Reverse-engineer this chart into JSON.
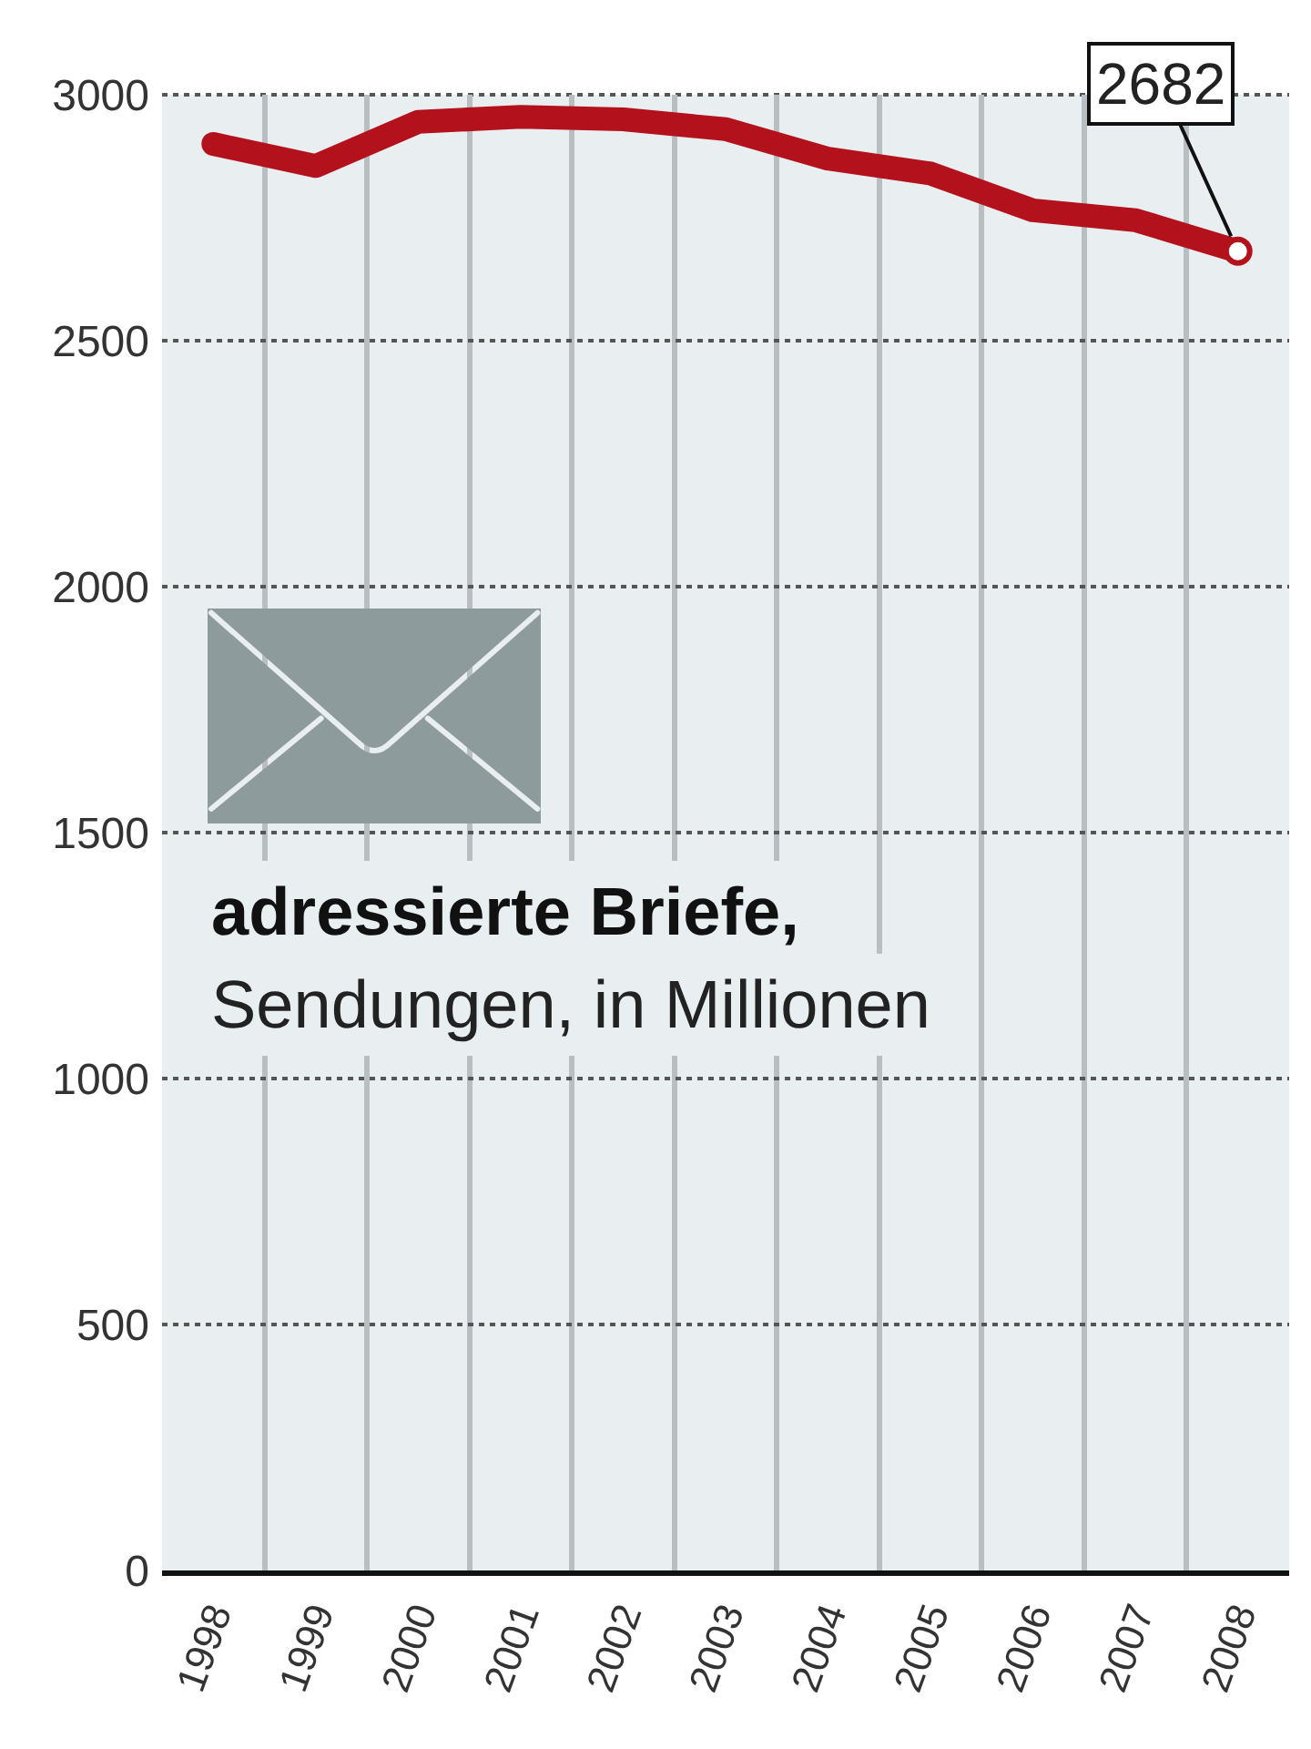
{
  "chart_data": {
    "type": "line",
    "title": "adressierte Briefe,",
    "subtitle": "Sendungen, in Millionen",
    "categories": [
      "1998",
      "1999",
      "2000",
      "2001",
      "2002",
      "2003",
      "2004",
      "2005",
      "2006",
      "2007",
      "2008"
    ],
    "values": [
      2900,
      2855,
      2945,
      2955,
      2950,
      2930,
      2870,
      2840,
      2765,
      2745,
      2682
    ],
    "value_labels": [
      null,
      null,
      null,
      null,
      null,
      null,
      null,
      null,
      null,
      null,
      "2682"
    ],
    "color": "#b3111c",
    "ylim": [
      0,
      3000
    ],
    "yticks": [
      0,
      500,
      1000,
      1500,
      2000,
      2500,
      3000
    ],
    "grid": true
  }
}
